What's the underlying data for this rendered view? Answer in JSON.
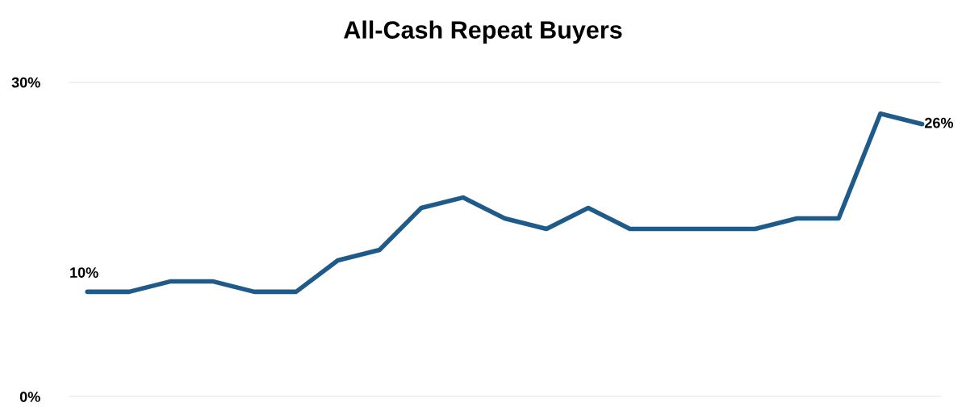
{
  "chart_data": {
    "type": "line",
    "title": "All-Cash Repeat Buyers",
    "categories": [
      null,
      null,
      null,
      null,
      null,
      null,
      null,
      null,
      null,
      null,
      null,
      null,
      null,
      null,
      null,
      null,
      null,
      null,
      null,
      null,
      null
    ],
    "series": [
      {
        "color": "#1f5b8a",
        "values": [
          10,
          10,
          11,
          11,
          10,
          10,
          13,
          14,
          18,
          19,
          17,
          16,
          18,
          16,
          16,
          16,
          16,
          17,
          17,
          27,
          26
        ],
        "value_labels": [
          "10%",
          null,
          null,
          null,
          null,
          null,
          null,
          null,
          null,
          null,
          null,
          null,
          null,
          null,
          null,
          null,
          null,
          null,
          null,
          null,
          "26%"
        ]
      }
    ],
    "ylim": [
      0,
      30
    ],
    "yticks": [
      {
        "value": 0,
        "label": "0%"
      },
      {
        "value": 30,
        "label": "30%"
      }
    ],
    "grid": "y",
    "legend": false,
    "marker": "none",
    "line_style": "solid"
  }
}
